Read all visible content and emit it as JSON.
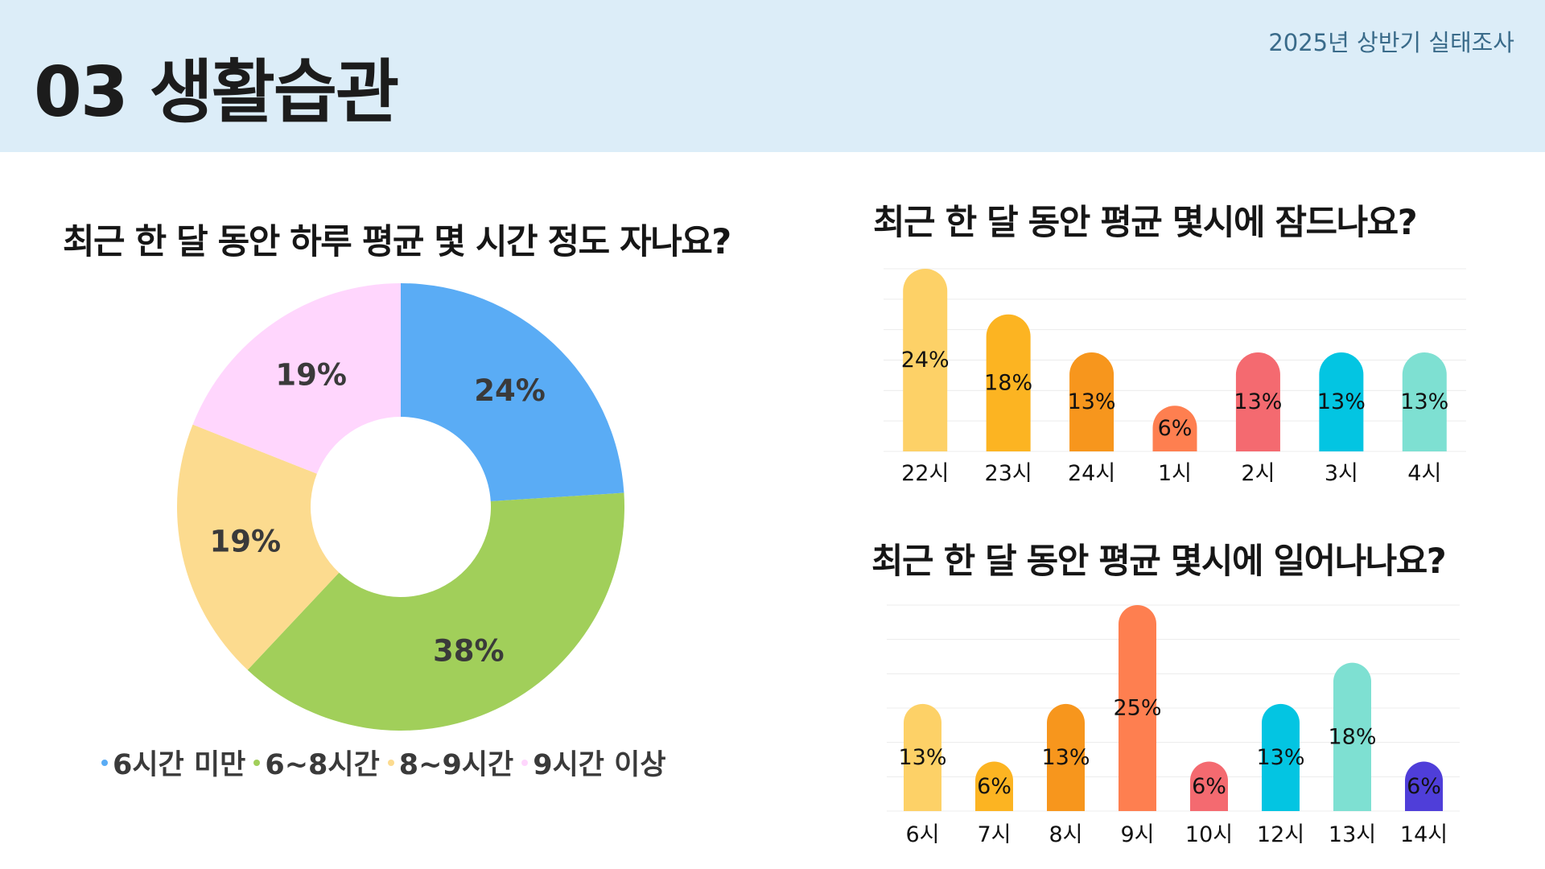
{
  "header": {
    "title": "03 생활습관",
    "survey_tag": "2025년 상반기 실태조사"
  },
  "colors": {
    "header_bg": "#dcedf8",
    "blue": "#5aacf5",
    "green": "#a1cf5a",
    "yellow": "#fcdb8f",
    "pink": "#ffd6fd"
  },
  "chart_data": [
    {
      "type": "pie",
      "variant": "donut",
      "title": "최근 한 달 동안 하루 평균 몇 시간 정도 자나요?",
      "categories": [
        "6시간 미만",
        "6~8시간",
        "8~9시간",
        "9시간 이상"
      ],
      "values": [
        24,
        38,
        19,
        19
      ],
      "labels": [
        "24%",
        "38%",
        "19%",
        "19%"
      ],
      "colors": [
        "#5aacf5",
        "#a1cf5a",
        "#fcdb8f",
        "#ffd6fd"
      ],
      "legend_position": "bottom"
    },
    {
      "type": "bar",
      "title": "최근 한 달 동안 평균 몇시에 잠드나요?",
      "categories": [
        "22시",
        "23시",
        "24시",
        "1시",
        "2시",
        "3시",
        "4시"
      ],
      "values": [
        24,
        18,
        13,
        6,
        13,
        13,
        13
      ],
      "labels": [
        "24%",
        "18%",
        "13%",
        "6%",
        "13%",
        "13%",
        "13%"
      ],
      "colors": [
        "#fdd167",
        "#fcb422",
        "#f7961d",
        "#fe7f50",
        "#f46a70",
        "#03c5e2",
        "#7ee0d2"
      ],
      "ylim": [
        0,
        24
      ],
      "grid": true
    },
    {
      "type": "bar",
      "title": "최근 한 달 동안 평균 몇시에 일어나나요?",
      "categories": [
        "6시",
        "7시",
        "8시",
        "9시",
        "10시",
        "12시",
        "13시",
        "14시"
      ],
      "values": [
        13,
        6,
        13,
        25,
        6,
        13,
        18,
        6
      ],
      "labels": [
        "13%",
        "6%",
        "13%",
        "25%",
        "6%",
        "13%",
        "18%",
        "6%"
      ],
      "colors": [
        "#fdd167",
        "#fcb422",
        "#f7961d",
        "#fe7f50",
        "#f46a70",
        "#03c5e2",
        "#7ee0d2",
        "#4f3ed9"
      ],
      "ylim": [
        0,
        25
      ],
      "grid": true
    }
  ]
}
